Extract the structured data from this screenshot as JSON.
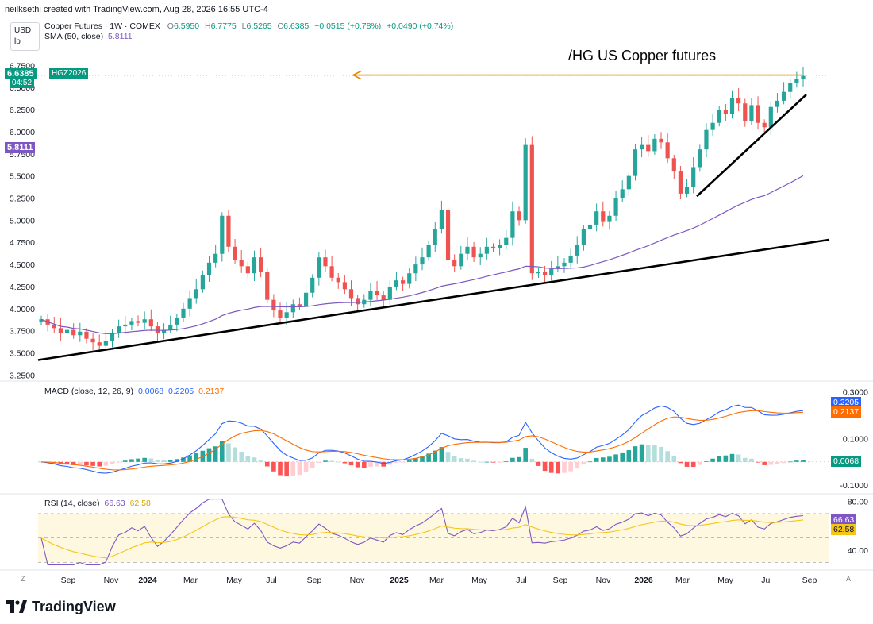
{
  "header": {
    "attribution": "neilksethi created with TradingView.com, Aug 28, 2026 16:55 UTC-4",
    "currency": "USD",
    "unit": "lb"
  },
  "legend": {
    "symbol_line": "Copper Futures · 1W · COMEX",
    "o_label": "O",
    "o": "6.5950",
    "h_label": "H",
    "h": "6.7775",
    "l_label": "L",
    "l": "6.5265",
    "c_label": "C",
    "c": "6.6385",
    "change": "+0.0515 (+0.78%)",
    "change2": "+0.0490 (+0.74%)",
    "sma_label": "SMA (50, close)",
    "sma_value": "5.8111"
  },
  "annotation": "/HG US Copper futures",
  "price_badges": {
    "last": "6.6385",
    "countdown": "04:52",
    "contract": "HGZ2026",
    "sma": "5.8111"
  },
  "macd_legend": {
    "label": "MACD (close, 12, 26, 9)",
    "v1": "0.0068",
    "v2": "0.2205",
    "v3": "0.2137"
  },
  "macd_badges": {
    "macd": "0.2205",
    "signal": "0.2137",
    "hist": "0.0068"
  },
  "rsi_legend": {
    "label": "RSI (14, close)",
    "v1": "66.63",
    "v2": "62.58"
  },
  "rsi_badges": {
    "rsi": "66.63",
    "ma": "62.58"
  },
  "footer": {
    "brand": "TradingView",
    "corner_left": "Z",
    "corner_right": "A"
  },
  "colors": {
    "up": "#26a69a",
    "down": "#ef5350",
    "sma": "#7e57c2",
    "macd": "#2962ff",
    "signal": "#ff6d00",
    "rsi": "#7e57c2",
    "rsi_ma": "#f5c518",
    "arrow": "#e08a00",
    "trend": "#000000"
  },
  "chart_data": [
    {
      "type": "candlestick",
      "title": "Copper Futures · 1W · COMEX",
      "y_ticks": [
        "6.7500",
        "6.5000",
        "6.2500",
        "6.0000",
        "5.7500",
        "5.5000",
        "5.2500",
        "5.0000",
        "4.7500",
        "4.5000",
        "4.2500",
        "4.0000",
        "3.7500",
        "3.5000",
        "3.2500"
      ],
      "x_ticks": [
        "Sep",
        "Nov",
        "2024",
        "Mar",
        "May",
        "Jul",
        "Sep",
        "Nov",
        "2025",
        "Mar",
        "May",
        "Jul",
        "Sep",
        "Nov",
        "2026",
        "Mar",
        "May",
        "Jul",
        "Sep"
      ],
      "ylim": [
        3.2,
        6.95
      ],
      "close_estimates": [
        3.88,
        3.82,
        3.78,
        3.72,
        3.76,
        3.7,
        3.74,
        3.66,
        3.62,
        3.58,
        3.64,
        3.72,
        3.8,
        3.82,
        3.86,
        3.84,
        3.88,
        3.8,
        3.72,
        3.76,
        3.82,
        3.9,
        4.0,
        4.12,
        4.22,
        4.38,
        4.52,
        4.62,
        5.05,
        4.7,
        4.55,
        4.48,
        4.4,
        4.58,
        4.42,
        4.1,
        3.98,
        3.9,
        3.96,
        4.05,
        4.02,
        4.18,
        4.35,
        4.58,
        4.48,
        4.35,
        4.3,
        4.22,
        4.12,
        4.05,
        4.1,
        4.2,
        4.15,
        4.1,
        4.25,
        4.32,
        4.28,
        4.4,
        4.5,
        4.58,
        4.72,
        4.9,
        5.12,
        4.55,
        4.48,
        4.62,
        4.7,
        4.58,
        4.62,
        4.7,
        4.68,
        4.72,
        4.8,
        5.1,
        5.0,
        5.85,
        4.4,
        4.42,
        4.38,
        4.45,
        4.48,
        4.52,
        4.6,
        4.72,
        4.9,
        4.95,
        5.1,
        4.98,
        5.05,
        5.25,
        5.35,
        5.5,
        5.8,
        5.85,
        5.78,
        5.92,
        5.88,
        5.7,
        5.55,
        5.3,
        5.38,
        5.6,
        5.8,
        6.02,
        6.1,
        6.25,
        6.2,
        6.38,
        6.32,
        6.12,
        6.3,
        6.1,
        6.05,
        6.28,
        6.35,
        6.45,
        6.55,
        6.6,
        6.63
      ],
      "sma50": {
        "name": "SMA (50, close)",
        "last": 5.8111
      },
      "annotations": [
        "/HG US Copper futures"
      ]
    },
    {
      "type": "bar",
      "title": "MACD (close, 12, 26, 9)",
      "y_ticks": [
        "0.3000",
        "0.1000",
        "-0.1000"
      ],
      "ylim": [
        -0.13,
        0.34
      ],
      "series": [
        {
          "name": "MACD",
          "last": 0.2205
        },
        {
          "name": "Signal",
          "last": 0.2137
        },
        {
          "name": "Histogram",
          "last": 0.0068
        }
      ]
    },
    {
      "type": "line",
      "title": "RSI (14, close)",
      "y_ticks": [
        "80.00",
        "40.00"
      ],
      "ylim": [
        25,
        85
      ],
      "band": [
        30,
        70
      ],
      "series": [
        {
          "name": "RSI",
          "last": 66.63
        },
        {
          "name": "RSI MA",
          "last": 62.58
        }
      ]
    }
  ]
}
